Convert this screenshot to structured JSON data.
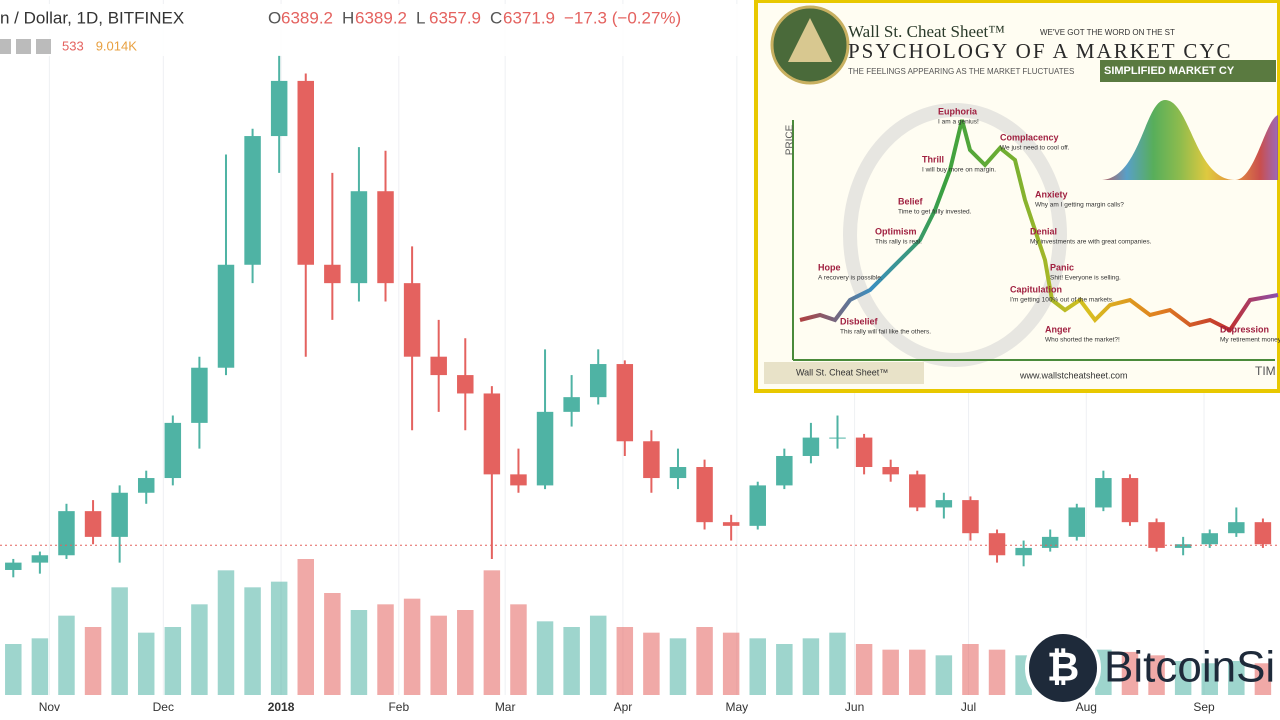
{
  "chart_data": {
    "type": "candlestick",
    "title": "n / Dollar, 1D, BITFINEX",
    "header_values": [
      {
        "key": "O",
        "value": "6389.2"
      },
      {
        "key": "H",
        "value": "6389.2"
      },
      {
        "key": "L",
        "value": "6357.9"
      },
      {
        "key": "C",
        "value": "6371.9"
      }
    ],
    "change": "−17.3 (−0.27%)",
    "volume_header": [
      "533",
      "9.014K"
    ],
    "xlim": [
      0,
      337
    ],
    "xticks": [
      {
        "value": 13,
        "label": "Nov"
      },
      {
        "value": 43,
        "label": "Dec"
      },
      {
        "value": 74,
        "label": "2018"
      },
      {
        "value": 105,
        "label": "Feb"
      },
      {
        "value": 133,
        "label": "Mar"
      },
      {
        "value": 164,
        "label": "Apr"
      },
      {
        "value": 194,
        "label": "May"
      },
      {
        "value": 225,
        "label": "Jun"
      },
      {
        "value": 255,
        "label": "Jul"
      },
      {
        "value": 286,
        "label": "Aug"
      },
      {
        "value": 317,
        "label": "Sep"
      }
    ],
    "ylim": [
      2300,
      21200
    ],
    "volume_lim": [
      0,
      150
    ],
    "last_price": 6371.9,
    "up_color": "#4fb3a4",
    "down_color": "#e4625f",
    "x": [
      3.5,
      10.5,
      17.5,
      24.5,
      31.5,
      38.5,
      45.5,
      52.5,
      59.5,
      66.5,
      73.5,
      80.5,
      87.5,
      94.5,
      101.5,
      108.5,
      115.5,
      122.5,
      129.5,
      136.5,
      143.5,
      150.5,
      157.5,
      164.5,
      171.5,
      178.5,
      185.5,
      192.5,
      199.5,
      206.5,
      213.5,
      220.5,
      227.5,
      234.5,
      241.5,
      248.5,
      255.5,
      262.5,
      269.5,
      276.5,
      283.5,
      290.5,
      297.5,
      304.5,
      311.5,
      318.5,
      325.5,
      332.5
    ],
    "open": [
      5700,
      5900,
      6100,
      7300,
      6600,
      7800,
      8200,
      9700,
      11200,
      14000,
      17500,
      19000,
      14000,
      13500,
      16000,
      13500,
      11500,
      11000,
      10500,
      8300,
      8000,
      10000,
      10400,
      11300,
      9200,
      8200,
      8500,
      7000,
      6900,
      8000,
      8800,
      9300,
      9300,
      8500,
      8300,
      7400,
      7600,
      6700,
      6100,
      6300,
      6600,
      7400,
      8200,
      7000,
      6300,
      6400,
      6700,
      7000
    ],
    "high": [
      6000,
      6200,
      7500,
      7600,
      8000,
      8400,
      9900,
      11500,
      17000,
      17700,
      19700,
      19200,
      16500,
      17200,
      17100,
      14500,
      12500,
      12000,
      10700,
      9000,
      11700,
      11000,
      11700,
      11400,
      9500,
      9000,
      8700,
      7200,
      8100,
      9000,
      9700,
      9900,
      9400,
      8700,
      8400,
      7800,
      7700,
      6800,
      6500,
      6800,
      7500,
      8400,
      8300,
      7100,
      6600,
      6800,
      7400,
      7100
    ],
    "low": [
      5500,
      5600,
      6000,
      6400,
      5900,
      7500,
      8000,
      9000,
      11000,
      13500,
      16500,
      11500,
      12500,
      13000,
      13000,
      9500,
      10000,
      9500,
      6000,
      7800,
      7900,
      9600,
      10200,
      8800,
      7800,
      7900,
      6800,
      6500,
      6800,
      7900,
      8600,
      9000,
      8300,
      8100,
      7300,
      7100,
      6500,
      5900,
      5800,
      6200,
      6500,
      7300,
      6900,
      6200,
      6100,
      6300,
      6600,
      6300
    ],
    "close": [
      5900,
      6100,
      7300,
      6600,
      7800,
      8200,
      9700,
      11200,
      14000,
      17500,
      19000,
      14000,
      13500,
      16000,
      13500,
      11500,
      11000,
      10500,
      8300,
      8000,
      10000,
      10400,
      11300,
      9200,
      8200,
      8500,
      7000,
      6900,
      8000,
      8800,
      9300,
      9300,
      8500,
      8300,
      7400,
      7600,
      6700,
      6100,
      6300,
      6600,
      7400,
      8200,
      7000,
      6300,
      6400,
      6700,
      7000,
      6400
    ],
    "volume": [
      45,
      50,
      70,
      60,
      95,
      55,
      60,
      80,
      110,
      95,
      100,
      120,
      90,
      75,
      80,
      85,
      70,
      75,
      110,
      80,
      65,
      60,
      70,
      60,
      55,
      50,
      60,
      55,
      50,
      45,
      50,
      55,
      45,
      40,
      40,
      35,
      45,
      40,
      35,
      30,
      35,
      40,
      38,
      35,
      30,
      28,
      30,
      28
    ]
  },
  "inset": {
    "brand": "Wall St. Cheat Sheet™",
    "tagline": "WE'VE GOT THE WORD ON THE ST",
    "title": "PSYCHOLOGY OF A MARKET CYC",
    "subtitle": "THE FEELINGS APPEARING AS THE MARKET FLUCTUATES",
    "simplified": "SIMPLIFIED MARKET CY",
    "axis_price": "PRICE",
    "axis_time": "TIM",
    "url": "www.wallstcheatsheet.com",
    "emotions": [
      {
        "name": "Disbelief",
        "note": "This rally will fail like the others."
      },
      {
        "name": "Hope",
        "note": "A recovery is possible."
      },
      {
        "name": "Optimism",
        "note": "This rally is real."
      },
      {
        "name": "Belief",
        "note": "Time to get fully invested."
      },
      {
        "name": "Thrill",
        "note": "I will buy more on margin."
      },
      {
        "name": "Euphoria",
        "note": "I am a genius!"
      },
      {
        "name": "Complacency",
        "note": "We just need to cool off."
      },
      {
        "name": "Anxiety",
        "note": "Why am I getting margin calls?"
      },
      {
        "name": "Denial",
        "note": "My investments are with great companies."
      },
      {
        "name": "Panic",
        "note": "Shit! Everyone is selling."
      },
      {
        "name": "Capitulation",
        "note": "I'm getting 100% out of the markets."
      },
      {
        "name": "Anger",
        "note": "Who shorted the market?!"
      },
      {
        "name": "Depression",
        "note": "My retirement money is lost."
      }
    ]
  },
  "watermark": "BitcoinSi"
}
